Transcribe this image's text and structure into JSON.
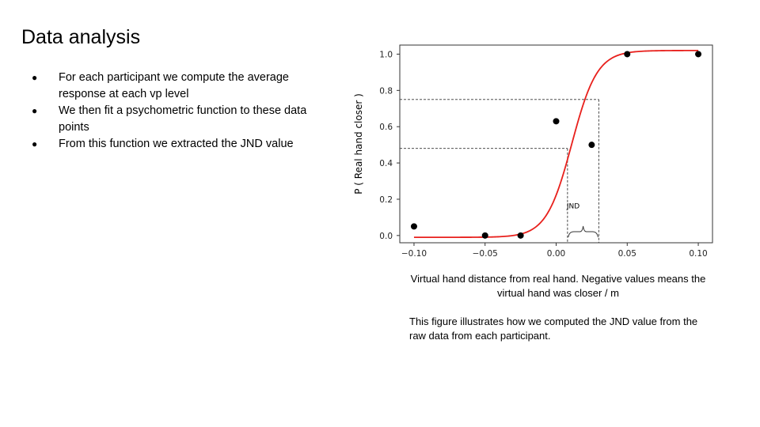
{
  "slide": {
    "title": "Data analysis",
    "bullets": [
      "For each participant we compute the average response at each vp level",
      "We then fit a psychometric function to these data points",
      "From this function we extracted the JND value"
    ],
    "caption": "This figure illustrates how we computed the JND value from the raw data from each participant."
  },
  "chart_data": {
    "type": "scatter",
    "title": "",
    "xlabel": "Virtual hand distance from real hand. Negative values means the virtual hand was closer / m",
    "ylabel": "P ( Real hand closer )",
    "xlim": [
      -0.11,
      0.11
    ],
    "ylim": [
      -0.04,
      1.05
    ],
    "x_ticks": [
      "-0.10",
      "-0.05",
      "0.00",
      "0.05",
      "0.10"
    ],
    "y_ticks": [
      "0.0",
      "0.2",
      "0.4",
      "0.6",
      "0.8",
      "1.0"
    ],
    "grid": false,
    "points": [
      {
        "x": -0.1,
        "y": 0.05
      },
      {
        "x": -0.05,
        "y": 0.0
      },
      {
        "x": -0.025,
        "y": 0.0
      },
      {
        "x": 0.0,
        "y": 0.63
      },
      {
        "x": 0.025,
        "y": 0.5
      },
      {
        "x": 0.05,
        "y": 1.0
      },
      {
        "x": 0.1,
        "y": 1.0
      }
    ],
    "fit_curve": {
      "function": "logistic",
      "lower": -0.01,
      "upper": 1.02,
      "midpoint": 0.011,
      "slope": 112,
      "x_range": [
        -0.1,
        0.1
      ],
      "color": "#e8201c"
    },
    "jnd_lines": [
      {
        "x": 0.008,
        "y": 0.48
      },
      {
        "x": 0.03,
        "y": 0.75
      }
    ],
    "annotation": "JND",
    "point_color": "#000000"
  }
}
